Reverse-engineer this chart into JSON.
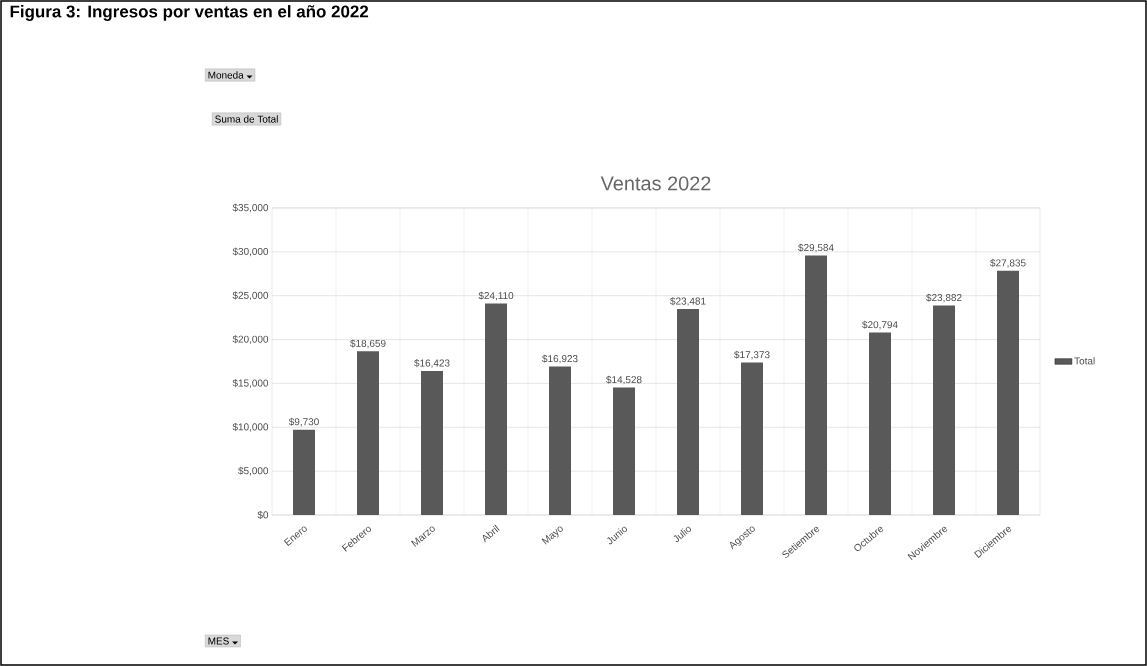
{
  "chart_data": {
    "type": "bar",
    "title": "Ventas 2022",
    "categories": [
      "Enero",
      "Febrero",
      "Marzo",
      "Abril",
      "Mayo",
      "Junio",
      "Julio",
      "Agosto",
      "Setiembre",
      "Octubre",
      "Noviembre",
      "Diciembre"
    ],
    "series": [
      {
        "name": "Total",
        "color": "#595959",
        "values": [
          9730,
          18659,
          16423,
          24110,
          16923,
          14528,
          23481,
          17373,
          29584,
          20794,
          23882,
          27835
        ],
        "value_labels": [
          "$9,730",
          "$18,659",
          "$16,423",
          "$24,110",
          "$16,923",
          "$14,528",
          "$23,481",
          "$17,373",
          "$29,584",
          "$20,794",
          "$23,882",
          "$27,835"
        ]
      }
    ],
    "ylim": [
      0,
      35000
    ],
    "yticks": [
      {
        "value": 0,
        "label": "$0"
      },
      {
        "value": 5000,
        "label": "$5,000"
      },
      {
        "value": 10000,
        "label": "$10,000"
      },
      {
        "value": 15000,
        "label": "$15,000"
      },
      {
        "value": 20000,
        "label": "$20,000"
      },
      {
        "value": 25000,
        "label": "$25,000"
      },
      {
        "value": 30000,
        "label": "$30,000"
      },
      {
        "value": 35000,
        "label": "$35,000"
      }
    ],
    "grid": true,
    "legend": "right",
    "annotations": [
      "Figura 3: Ingresos por ventas en el año 2022",
      "Moneda",
      "Suma de Total",
      "MES"
    ]
  }
}
